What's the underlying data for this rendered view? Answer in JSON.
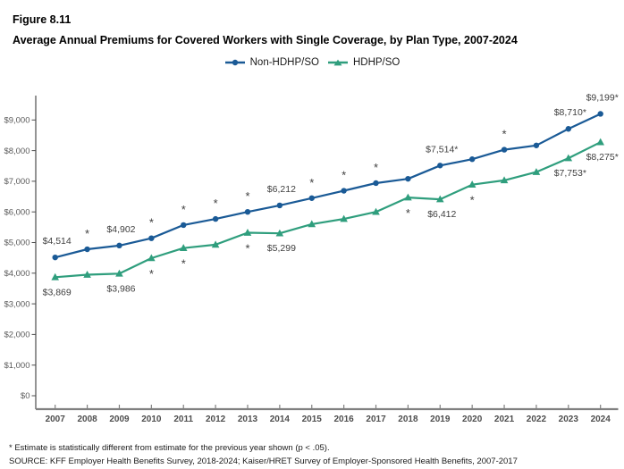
{
  "chart_data": {
    "type": "line",
    "figure_label": "Figure 8.11",
    "title": "Average Annual Premiums for Covered Workers with Single Coverage, by Plan Type, 2007-2024",
    "xlabel": "",
    "ylabel": "",
    "x": [
      "2007",
      "2008",
      "2009",
      "2010",
      "2011",
      "2012",
      "2013",
      "2014",
      "2015",
      "2016",
      "2017",
      "2018",
      "2019",
      "2020",
      "2021",
      "2022",
      "2023",
      "2024"
    ],
    "ylim": [
      0,
      9000
    ],
    "ytick_step": 1000,
    "ytick_labels": [
      "$0",
      "$1,000",
      "$2,000",
      "$3,000",
      "$4,000",
      "$5,000",
      "$6,000",
      "$7,000",
      "$8,000",
      "$9,000"
    ],
    "grid": false,
    "legend_position": "top-center",
    "series": [
      {
        "name": "Non-HDHP/SO",
        "color": "#1A5A96",
        "marker": "circle",
        "label_side": "above",
        "values": [
          4514,
          4780,
          4902,
          5140,
          5570,
          5770,
          6000,
          6212,
          6450,
          6690,
          6940,
          7080,
          7514,
          7720,
          8030,
          8170,
          8710,
          9199
        ],
        "point_labels": {
          "2007": "$4,514",
          "2009": "$4,902",
          "2014": "$6,212",
          "2019": "$7,514*",
          "2023": "$8,710*",
          "2024": "$9,199*"
        },
        "asterisk_years": [
          "2008",
          "2010",
          "2011",
          "2012",
          "2013",
          "2015",
          "2016",
          "2017",
          "2021"
        ]
      },
      {
        "name": "HDHP/SO",
        "color": "#2F9E7D",
        "marker": "triangle",
        "label_side": "below",
        "values": [
          3869,
          3950,
          3986,
          4490,
          4820,
          4930,
          5320,
          5299,
          5600,
          5770,
          6000,
          6470,
          6412,
          6890,
          7030,
          7300,
          7753,
          8275
        ],
        "point_labels": {
          "2007": "$3,869",
          "2009": "$3,986",
          "2014": "$5,299",
          "2019": "$6,412",
          "2023": "$7,753*",
          "2024": "$8,275*"
        },
        "asterisk_years": [
          "2010",
          "2011",
          "2013",
          "2018",
          "2020"
        ]
      }
    ],
    "footnotes": [
      "* Estimate is statistically different from estimate for the previous year shown (p < .05).",
      "SOURCE: KFF Employer Health Benefits Survey, 2018-2024; Kaiser/HRET Survey of Employer-Sponsored Health Benefits, 2007-2017"
    ]
  }
}
